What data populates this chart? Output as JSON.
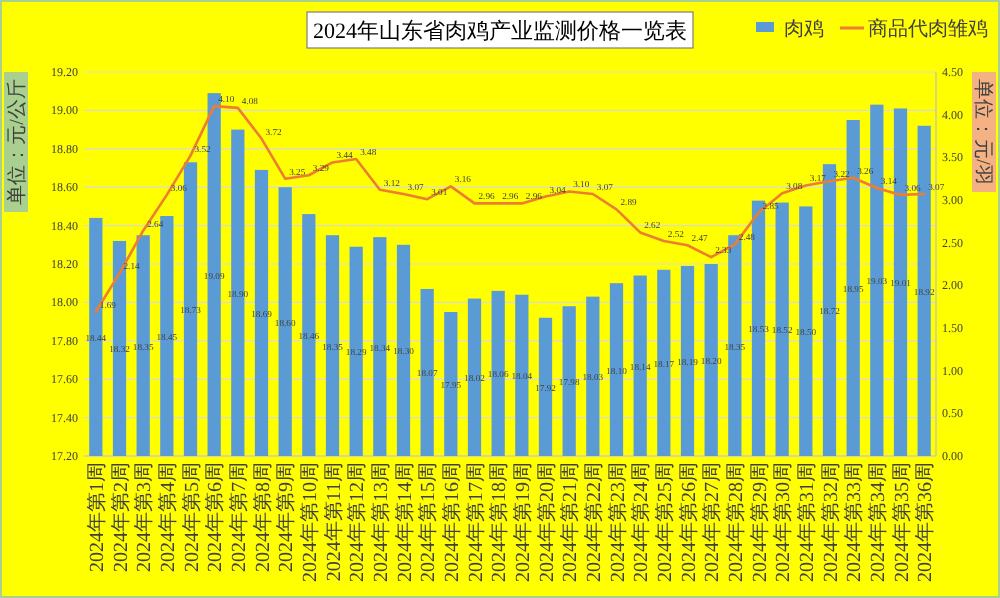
{
  "chart_data": {
    "type": "bar",
    "title": "2024年山东省肉鸡产业监测价格一览表",
    "categories": [
      "2024年第1周",
      "2024年第2周",
      "2024年第3周",
      "2024年第4周",
      "2024年第5周",
      "2024年第6周",
      "2024年第7周",
      "2024年第8周",
      "2024年第9周",
      "2024年第10周",
      "2024年第11周",
      "2024年第12周",
      "2024年第13周",
      "2024年第14周",
      "2024年第15周",
      "2024年第16周",
      "2024年第17周",
      "2024年第18周",
      "2024年第19周",
      "2024年第20周",
      "2024年第21周",
      "2024年第22周",
      "2024年第23周",
      "2024年第24周",
      "2024年第25周",
      "2024年第26周",
      "2024年第27周",
      "2024年第28周",
      "2024年第29周",
      "2024年第30周",
      "2024年第31周",
      "2024年第32周",
      "2024年第33周",
      "2024年第34周",
      "2024年第35周",
      "2024年第36周"
    ],
    "series": [
      {
        "name": "肉鸡",
        "color": "#5b9bd5",
        "values": [
          18.44,
          18.32,
          18.35,
          18.45,
          18.73,
          19.09,
          18.9,
          18.69,
          18.6,
          18.46,
          18.35,
          18.29,
          18.34,
          18.3,
          18.07,
          17.95,
          18.02,
          18.06,
          18.04,
          17.92,
          17.98,
          18.03,
          18.1,
          18.14,
          18.17,
          18.19,
          18.2,
          18.35,
          18.53,
          18.52,
          18.5,
          18.72,
          18.95,
          19.03,
          19.01,
          18.92
        ],
        "value_labels": [
          "18.44",
          "18.32",
          "18.35",
          "18.45",
          "18.73",
          "19.09",
          "18.90",
          "18.69",
          "18.60",
          "18.46",
          "18.35",
          "18.29",
          "18.34",
          "18.30",
          "18.07",
          "17.95",
          "18.02",
          "18.06",
          "18.04",
          "17.92",
          "17.98",
          "18.03",
          "18.10",
          "18.14",
          "18.17",
          "18.19",
          "18.20",
          "18.35",
          "18.53",
          "18.52",
          "18.50",
          "18.72",
          "18.95",
          "19.03",
          "19.01",
          "18.92"
        ]
      },
      {
        "name": "商品代肉雏鸡",
        "type": "line",
        "axis": "y2",
        "color": "#ed7d31",
        "values": [
          1.69,
          2.14,
          2.64,
          3.06,
          3.52,
          4.1,
          4.08,
          3.72,
          3.25,
          3.29,
          3.44,
          3.48,
          3.12,
          3.07,
          3.01,
          3.16,
          2.96,
          2.96,
          2.96,
          3.04,
          3.1,
          3.07,
          2.89,
          2.62,
          2.52,
          2.47,
          2.33,
          2.48,
          2.85,
          3.08,
          3.17,
          3.22,
          3.26,
          3.14,
          3.06,
          3.07
        ],
        "value_labels": [
          "1.69",
          "2.14",
          "2.64",
          "3.06",
          "3.52",
          "4.10",
          "4.08",
          "3.72",
          "3.25",
          "3.29",
          "3.44",
          "3.48",
          "3.12",
          "3.07",
          "3.01",
          "3.16",
          "2.96",
          "2.96",
          "2.96",
          "3.04",
          "3.10",
          "3.07",
          "2.89",
          "2.62",
          "2.52",
          "2.47",
          "2.33",
          "2.48",
          "2.85",
          "3.08",
          "3.17",
          "3.22",
          "3.26",
          "3.14",
          "3.06",
          "3.07"
        ]
      }
    ],
    "ylabel": "单位：元/公斤",
    "y2label": "单位：元/羽",
    "ylim": [
      17.2,
      19.2
    ],
    "yticks": [
      {
        "value": 17.2,
        "label": "17.20"
      },
      {
        "value": 17.4,
        "label": "17.40"
      },
      {
        "value": 17.6,
        "label": "17.60"
      },
      {
        "value": 17.8,
        "label": "17.80"
      },
      {
        "value": 18,
        "label": "18.00"
      },
      {
        "value": 18.2,
        "label": "18.20"
      },
      {
        "value": 18.4,
        "label": "18.40"
      },
      {
        "value": 18.6,
        "label": "18.60"
      },
      {
        "value": 18.8,
        "label": "18.80"
      },
      {
        "value": 19,
        "label": "19.00"
      },
      {
        "value": 19.2,
        "label": "19.20"
      }
    ],
    "y2lim": [
      0,
      4.5
    ],
    "y2ticks": [
      {
        "value": 0,
        "label": "0.00"
      },
      {
        "value": 0.5,
        "label": "0.50"
      },
      {
        "value": 1,
        "label": "1.00"
      },
      {
        "value": 1.5,
        "label": "1.50"
      },
      {
        "value": 2,
        "label": "2.00"
      },
      {
        "value": 2.5,
        "label": "2.50"
      },
      {
        "value": 3,
        "label": "3.00"
      },
      {
        "value": 3.5,
        "label": "3.50"
      },
      {
        "value": 4,
        "label": "4.00"
      },
      {
        "value": 4.5,
        "label": "4.50"
      }
    ],
    "grid": "y",
    "legend": "top right"
  }
}
